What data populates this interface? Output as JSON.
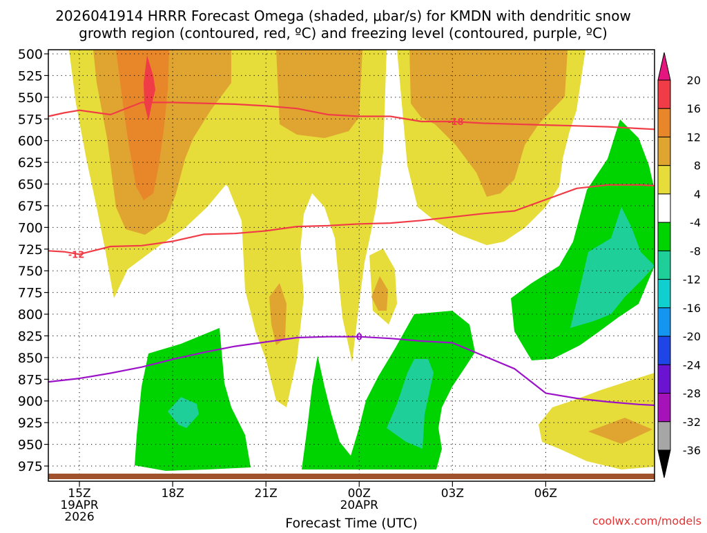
{
  "chart_data": {
    "type": "heatmap",
    "title_line1": "2026041914 HRRR Forecast Omega (shaded, μbar/s) for KMDN with dendritic snow",
    "title_line2": "growth region (contoured, red, ºC) and freezing level (contoured, purple, ºC)",
    "xlabel": "Forecast Time (UTC)",
    "credit": "coolwx.com/models",
    "x_start_hour": 14,
    "x_end_hour": 33.5,
    "y_levels": [
      500,
      525,
      550,
      575,
      600,
      625,
      650,
      675,
      700,
      725,
      750,
      775,
      800,
      825,
      850,
      875,
      900,
      925,
      950,
      975
    ],
    "x_ticks": [
      {
        "hour": 15,
        "lines": [
          "15Z",
          "19APR",
          "2026"
        ]
      },
      {
        "hour": 18,
        "lines": [
          "18Z"
        ]
      },
      {
        "hour": 21,
        "lines": [
          "21Z"
        ]
      },
      {
        "hour": 24,
        "lines": [
          "00Z",
          "20APR"
        ]
      },
      {
        "hour": 27,
        "lines": [
          "03Z"
        ]
      },
      {
        "hour": 30,
        "lines": [
          "06Z"
        ]
      }
    ],
    "colorbar": {
      "levels": [
        20,
        16,
        12,
        8,
        4,
        -4,
        -8,
        -12,
        -16,
        -20,
        -24,
        -28,
        -32,
        -36
      ],
      "bins": [
        {
          "from": 16,
          "to": 20,
          "color": "#f03c46"
        },
        {
          "from": 12,
          "to": 16,
          "color": "#e8872a"
        },
        {
          "from": 8,
          "to": 12,
          "color": "#e0a530"
        },
        {
          "from": 4,
          "to": 8,
          "color": "#e6dc3a"
        },
        {
          "from": -4,
          "to": 4,
          "color": "#ffffff"
        },
        {
          "from": -8,
          "to": -4,
          "color": "#00d400"
        },
        {
          "from": -12,
          "to": -8,
          "color": "#1fcf9a"
        },
        {
          "from": -16,
          "to": -12,
          "color": "#12cfcf"
        },
        {
          "from": -20,
          "to": -16,
          "color": "#1496f0"
        },
        {
          "from": -24,
          "to": -20,
          "color": "#1e46e6"
        },
        {
          "from": -28,
          "to": -24,
          "color": "#6a14d2"
        },
        {
          "from": -32,
          "to": -28,
          "color": "#a512b8"
        },
        {
          "from": -36,
          "to": -32,
          "color": "#a6a6a6"
        }
      ],
      "top_arrow_color": "#e4157f",
      "bottom_arrow_color": "#000000"
    },
    "contours": [
      {
        "name": "-18 isotherm",
        "label": "-18",
        "color": "#f03c46",
        "points": [
          [
            14,
            572
          ],
          [
            14.5,
            568
          ],
          [
            15,
            565
          ],
          [
            16,
            570
          ],
          [
            17,
            556
          ],
          [
            18,
            556
          ],
          [
            20,
            558
          ],
          [
            21,
            560
          ],
          [
            22,
            563
          ],
          [
            23,
            570
          ],
          [
            24,
            572
          ],
          [
            25,
            572
          ],
          [
            26,
            578
          ],
          [
            27,
            578
          ],
          [
            28,
            580
          ],
          [
            29,
            581
          ],
          [
            30,
            582
          ],
          [
            31,
            583
          ],
          [
            32,
            584
          ],
          [
            33,
            586
          ],
          [
            33.5,
            587
          ]
        ],
        "label_at": [
          27.1,
          578
        ]
      },
      {
        "name": "-12 isotherm",
        "label": "-12",
        "color": "#f03c46",
        "points": [
          [
            14,
            727
          ],
          [
            14.5,
            728
          ],
          [
            15,
            731
          ],
          [
            16,
            722
          ],
          [
            17,
            721
          ],
          [
            18,
            716
          ],
          [
            19,
            708
          ],
          [
            20,
            707
          ],
          [
            21,
            704
          ],
          [
            22,
            699
          ],
          [
            23,
            698
          ],
          [
            24,
            696
          ],
          [
            25,
            695
          ],
          [
            26,
            692
          ],
          [
            27,
            688
          ],
          [
            28,
            684
          ],
          [
            29,
            681
          ],
          [
            30,
            668
          ],
          [
            31,
            655
          ],
          [
            32,
            651
          ],
          [
            33,
            651
          ],
          [
            33.5,
            652
          ]
        ],
        "label_at": [
          14.9,
          731
        ]
      },
      {
        "name": "0 isotherm (freezing level)",
        "label": "0",
        "color": "#9b12c8",
        "points": [
          [
            14,
            878
          ],
          [
            15,
            874
          ],
          [
            16,
            868
          ],
          [
            17,
            861
          ],
          [
            18,
            852
          ],
          [
            19,
            844
          ],
          [
            20,
            837
          ],
          [
            21,
            832
          ],
          [
            22,
            827
          ],
          [
            23,
            826
          ],
          [
            24,
            826
          ],
          [
            25,
            828
          ],
          [
            26,
            831
          ],
          [
            27,
            833
          ],
          [
            28,
            848
          ],
          [
            29,
            863
          ],
          [
            30,
            891
          ],
          [
            31,
            897
          ],
          [
            32,
            901
          ],
          [
            33,
            904
          ],
          [
            33.5,
            905
          ]
        ],
        "label_at": [
          24,
          826
        ]
      }
    ],
    "surface_color": "#a0522d"
  }
}
